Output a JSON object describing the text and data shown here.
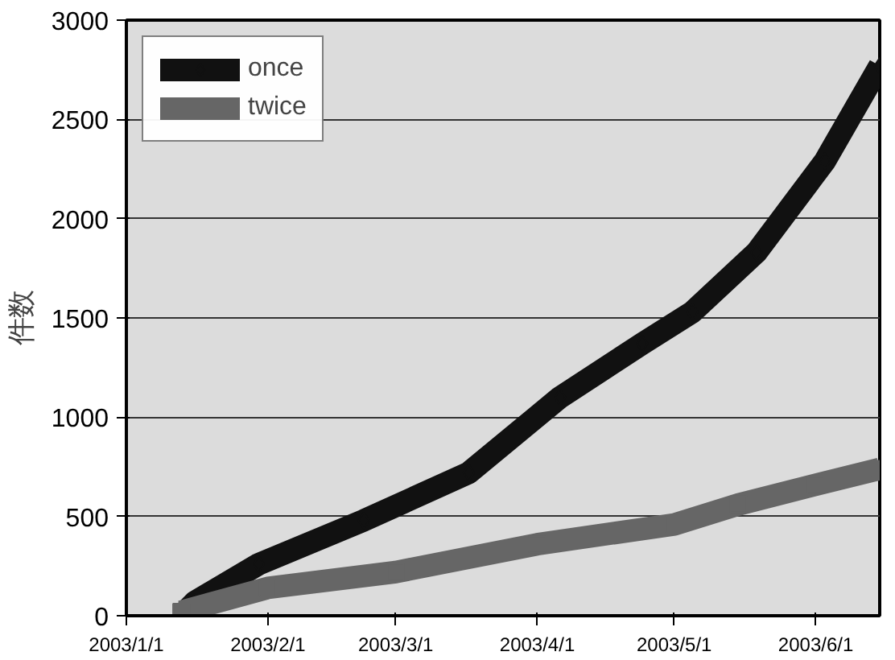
{
  "chart_data": {
    "type": "line",
    "ylabel": "件数",
    "xlim": [
      "2003-01-01",
      "2003-06-15"
    ],
    "ylim": [
      0,
      3000
    ],
    "xticks": [
      {
        "value": "2003-01-01",
        "label": "2003/1/1"
      },
      {
        "value": "2003-02-01",
        "label": "2003/2/1"
      },
      {
        "value": "2003-03-01",
        "label": "2003/3/1"
      },
      {
        "value": "2003-04-01",
        "label": "2003/4/1"
      },
      {
        "value": "2003-05-01",
        "label": "2003/5/1"
      },
      {
        "value": "2003-06-01",
        "label": "2003/6/1"
      }
    ],
    "yticks": [
      0,
      500,
      1000,
      1500,
      2000,
      2500,
      3000
    ],
    "grid": "y",
    "legend": "top left",
    "series": [
      {
        "name": "once",
        "color": "#111111",
        "marker": "diamond",
        "x": [
          "2003-01-13",
          "2003-01-16",
          "2003-01-30",
          "2003-02-22",
          "2003-03-17",
          "2003-04-06",
          "2003-04-24",
          "2003-05-05",
          "2003-05-19",
          "2003-06-03",
          "2003-06-15"
        ],
        "values": [
          0,
          70,
          260,
          480,
          720,
          1100,
          1370,
          1530,
          1830,
          2290,
          2770
        ]
      },
      {
        "name": "twice",
        "color": "#666666",
        "marker": "square",
        "x": [
          "2003-01-13",
          "2003-02-01",
          "2003-03-01",
          "2003-04-01",
          "2003-05-01",
          "2003-05-15",
          "2003-06-01",
          "2003-06-15"
        ],
        "values": [
          20,
          140,
          220,
          360,
          460,
          560,
          660,
          740
        ]
      }
    ]
  }
}
